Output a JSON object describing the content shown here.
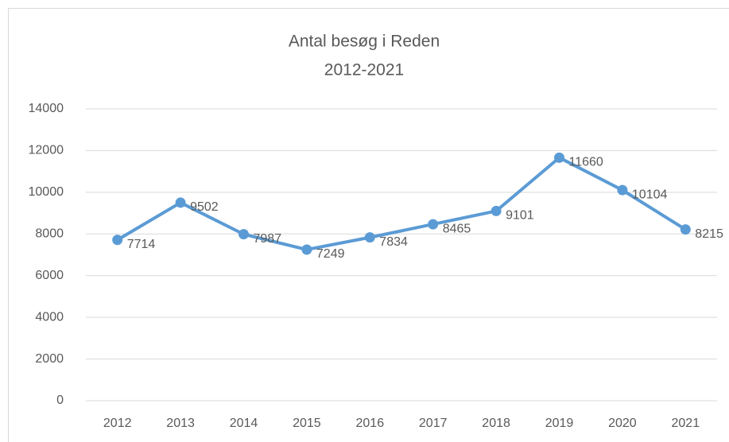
{
  "chart_data": {
    "type": "line",
    "title": "Antal besøg i Reden",
    "subtitle": "2012-2021",
    "categories": [
      "2012",
      "2013",
      "2014",
      "2015",
      "2016",
      "2017",
      "2018",
      "2019",
      "2020",
      "2021"
    ],
    "series": [
      {
        "name": "Antal besøg",
        "color": "#5b9bd5",
        "values": [
          7714,
          9502,
          7987,
          7249,
          7834,
          8465,
          9101,
          11660,
          10104,
          8215
        ]
      }
    ],
    "ylim": [
      0,
      14000
    ],
    "yticks": [
      0,
      2000,
      4000,
      6000,
      8000,
      10000,
      12000,
      14000
    ],
    "grid": true
  }
}
